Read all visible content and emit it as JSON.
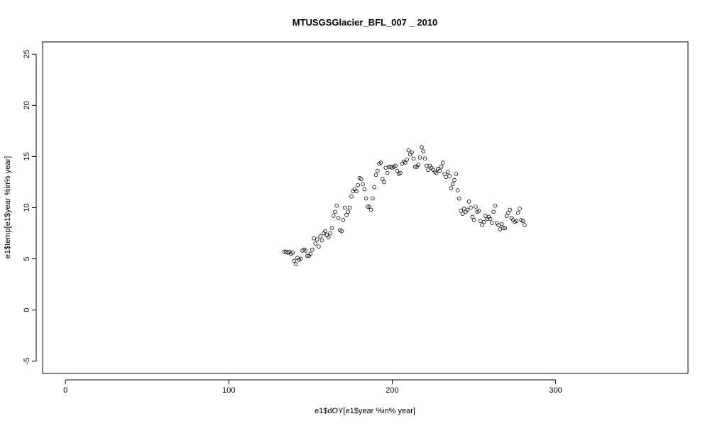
{
  "chart_data": {
    "type": "scatter",
    "title": "MTUSGSGlacier_BFL_007 _ 2010",
    "xlabel": "e1$dOY[e1$year %in% year]",
    "ylabel": "e1$temp[e1$year %in% year]",
    "xlim": [
      -14,
      381
    ],
    "ylim": [
      -6.2,
      26.2
    ],
    "xticks": [
      0,
      100,
      200,
      300
    ],
    "yticks": [
      -5,
      0,
      5,
      10,
      15,
      20,
      25
    ],
    "xtick_labels": [
      "0",
      "100",
      "200",
      "300"
    ],
    "ytick_labels": [
      "-5",
      "0",
      "5",
      "10",
      "15",
      "20",
      "25"
    ],
    "grid": false,
    "series": [
      {
        "x": [
          134,
          135,
          136,
          137,
          138,
          139,
          140,
          141,
          142,
          143,
          144,
          145,
          146,
          147,
          148,
          149,
          150,
          151,
          152,
          153,
          154,
          155,
          156,
          157,
          158,
          159,
          160,
          161,
          162,
          163,
          164,
          165,
          166,
          167,
          168,
          169,
          170,
          171,
          172,
          173,
          174,
          175,
          176,
          177,
          178,
          179,
          180,
          181,
          182,
          183,
          184,
          185,
          186,
          187,
          188,
          189,
          190,
          191,
          192,
          193,
          194,
          195,
          196,
          197,
          198,
          199,
          200,
          201,
          202,
          203,
          204,
          205,
          206,
          207,
          208,
          209,
          210,
          211,
          212,
          213,
          214,
          215,
          216,
          217,
          218,
          219,
          220,
          221,
          222,
          223,
          224,
          225,
          226,
          227,
          228,
          229,
          230,
          231,
          232,
          233,
          234,
          235,
          236,
          237,
          238,
          239,
          240,
          241,
          242,
          243,
          244,
          245,
          246,
          247,
          248,
          249,
          250,
          251,
          252,
          253,
          254,
          255,
          256,
          257,
          258,
          259,
          260,
          261,
          262,
          263,
          264,
          265,
          266,
          267,
          268,
          269,
          270,
          271,
          272,
          273,
          274,
          275,
          276,
          277,
          278,
          279,
          280,
          281
        ],
        "y": [
          5.7,
          5.7,
          5.6,
          5.7,
          5.5,
          5.6,
          4.8,
          4.5,
          5.1,
          4.9,
          5.0,
          5.8,
          5.9,
          5.8,
          5.3,
          5.3,
          5.5,
          5.9,
          7.0,
          6.5,
          6.9,
          6.2,
          7.2,
          6.8,
          7.5,
          7.7,
          7.3,
          7.1,
          7.5,
          8.0,
          9.2,
          9.6,
          10.2,
          9.0,
          7.8,
          7.7,
          8.8,
          10.0,
          9.3,
          9.6,
          10.0,
          11.1,
          11.6,
          11.8,
          11.6,
          12.2,
          12.9,
          12.8,
          12.3,
          11.8,
          10.9,
          10.1,
          10.1,
          9.8,
          10.9,
          12.0,
          13.2,
          13.6,
          14.3,
          14.4,
          12.8,
          12.5,
          13.9,
          13.4,
          14.0,
          14.0,
          13.9,
          14.0,
          14.1,
          13.6,
          13.3,
          13.4,
          14.3,
          14.5,
          14.4,
          14.7,
          15.6,
          15.2,
          15.4,
          14.8,
          14.0,
          14.0,
          14.2,
          14.9,
          15.9,
          15.5,
          14.8,
          14.1,
          13.7,
          14.1,
          13.9,
          13.7,
          13.5,
          13.4,
          13.8,
          13.6,
          14.0,
          14.4,
          13.3,
          13.0,
          13.5,
          13.1,
          11.9,
          12.3,
          12.7,
          13.3,
          11.7,
          10.9,
          9.7,
          9.4,
          9.9,
          9.6,
          9.8,
          10.6,
          10.0,
          9.1,
          8.8,
          10.1,
          9.6,
          9.7,
          8.7,
          8.3,
          8.6,
          9.2,
          8.9,
          9.1,
          8.9,
          8.5,
          9.6,
          10.2,
          8.5,
          8.3,
          7.9,
          8.4,
          8.0,
          8.0,
          9.2,
          9.5,
          9.8,
          9.0,
          8.8,
          8.6,
          8.7,
          9.5,
          9.9,
          8.8,
          8.7,
          8.3
        ]
      }
    ]
  }
}
